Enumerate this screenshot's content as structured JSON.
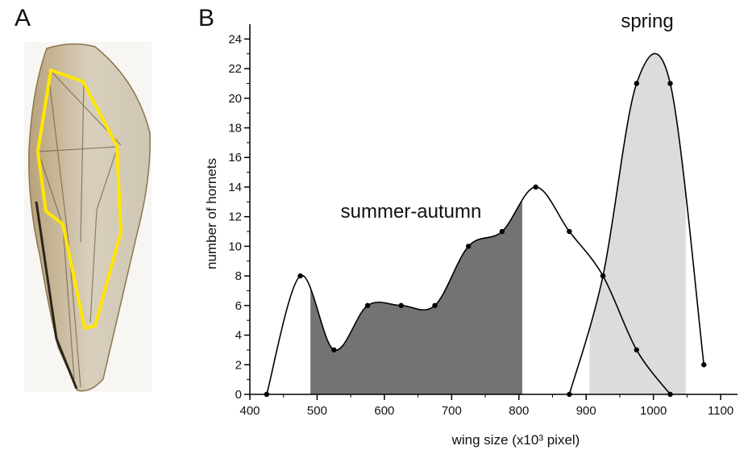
{
  "panels": [
    "A",
    "B"
  ],
  "chart_data": {
    "type": "line",
    "xlabel": "wing size (x10³ pixel)",
    "ylabel": "number of hornets",
    "xlim": [
      400,
      1125
    ],
    "ylim": [
      0,
      25
    ],
    "xticks": [
      400,
      500,
      600,
      700,
      800,
      900,
      1000,
      1100
    ],
    "yticks": [
      0,
      2,
      4,
      6,
      8,
      10,
      12,
      14,
      16,
      18,
      20,
      22,
      24
    ],
    "series": [
      {
        "name": "summer-autumn",
        "color": "#737373",
        "x": [
          425,
          475,
          525,
          575,
          625,
          675,
          725,
          775,
          825,
          875,
          925,
          975,
          1025
        ],
        "values": [
          0,
          8,
          3,
          6,
          6,
          6,
          10,
          11,
          14,
          11,
          8,
          3,
          0
        ],
        "shade": [
          490,
          805
        ]
      },
      {
        "name": "spring",
        "color": "#dcdcdc",
        "x": [
          875,
          925,
          975,
          1025,
          1075
        ],
        "values": [
          0,
          8,
          21,
          21,
          2
        ],
        "shade": [
          905,
          1048
        ]
      }
    ]
  }
}
